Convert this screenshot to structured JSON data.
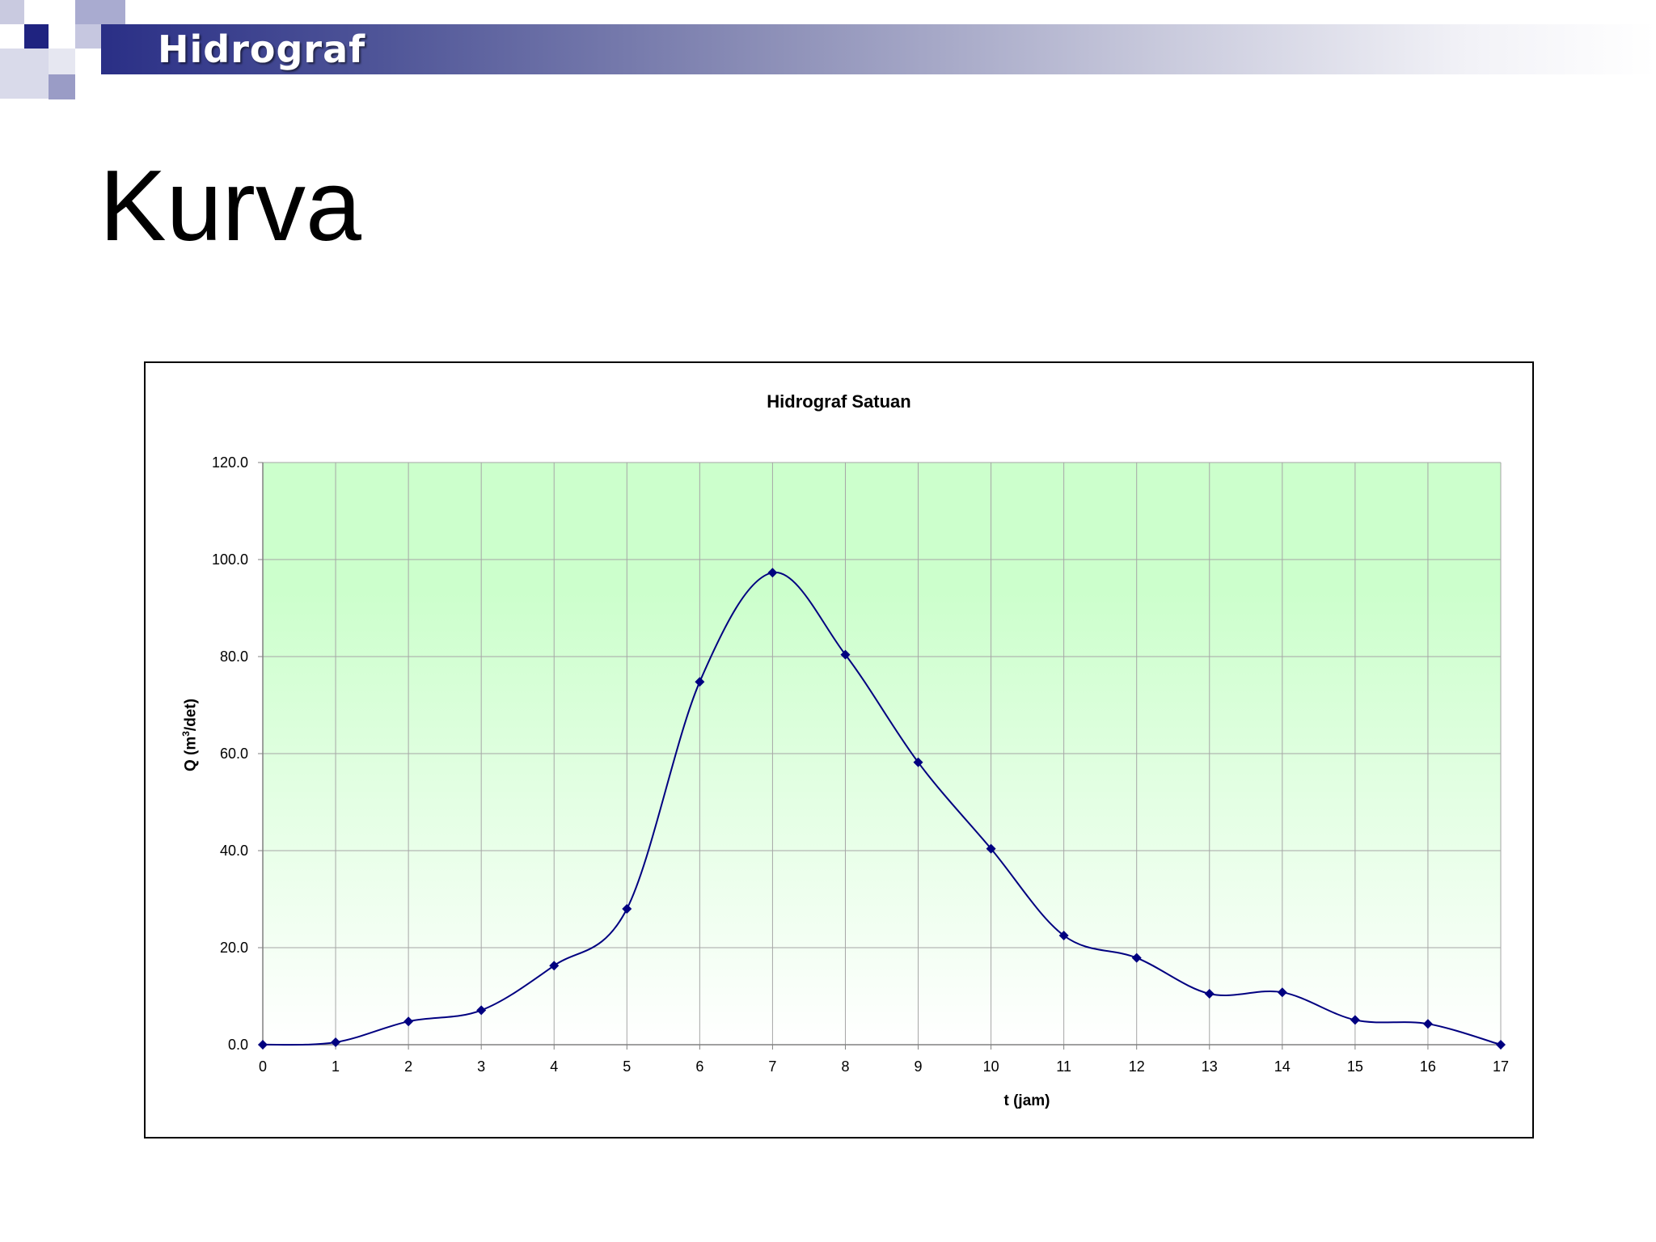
{
  "slide": {
    "header_title": "Hidrograf",
    "title": "Kurva"
  },
  "colors": {
    "header_dark": "#2a2f86",
    "square_dark": "#1f2380",
    "square_light": "#9a9cc6",
    "plot_top": "#ccffcc",
    "plot_bottom": "#ffffff",
    "series_line": "#000080",
    "gridline": "#a6a6a6"
  },
  "chart_data": {
    "type": "line",
    "title": "Hidrograf Satuan",
    "xlabel": "t (jam)",
    "ylabel": "Q (m3/det)",
    "x": [
      0,
      1,
      2,
      3,
      4,
      5,
      6,
      7,
      8,
      9,
      10,
      11,
      12,
      13,
      14,
      15,
      16,
      17
    ],
    "series": [
      {
        "values": [
          0.0,
          0.5,
          4.8,
          7.1,
          16.3,
          28.0,
          74.8,
          97.3,
          80.4,
          58.2,
          40.4,
          22.5,
          17.9,
          10.5,
          10.8,
          5.1,
          4.3,
          0.0
        ],
        "marker": "diamond",
        "smooth": true
      }
    ],
    "xlim": [
      0,
      17
    ],
    "ylim": [
      0,
      120
    ],
    "x_ticks": [
      "0",
      "1",
      "2",
      "3",
      "4",
      "5",
      "6",
      "7",
      "8",
      "9",
      "10",
      "11",
      "12",
      "13",
      "14",
      "15",
      "16",
      "17"
    ],
    "y_ticks": [
      "0.0",
      "20.0",
      "40.0",
      "60.0",
      "80.0",
      "100.0",
      "120.0"
    ],
    "grid": true,
    "legend": "none"
  }
}
